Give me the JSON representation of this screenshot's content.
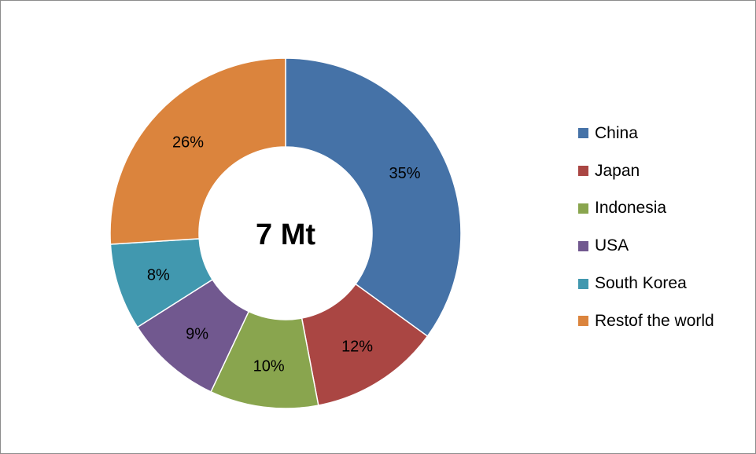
{
  "chart_data": {
    "type": "pie",
    "variant": "donut",
    "center_label": "7 Mt",
    "categories": [
      "China",
      "Japan",
      "Indonesia",
      "USA",
      "South Korea",
      "Restof the world"
    ],
    "values": [
      35,
      12,
      10,
      9,
      8,
      26
    ],
    "value_labels": [
      "35%",
      "12%",
      "10%",
      "9%",
      "8%",
      "26%"
    ],
    "colors": [
      "#4572a7",
      "#aa4643",
      "#89a54e",
      "#71588f",
      "#4198af",
      "#db843d"
    ],
    "legend_position": "right"
  }
}
